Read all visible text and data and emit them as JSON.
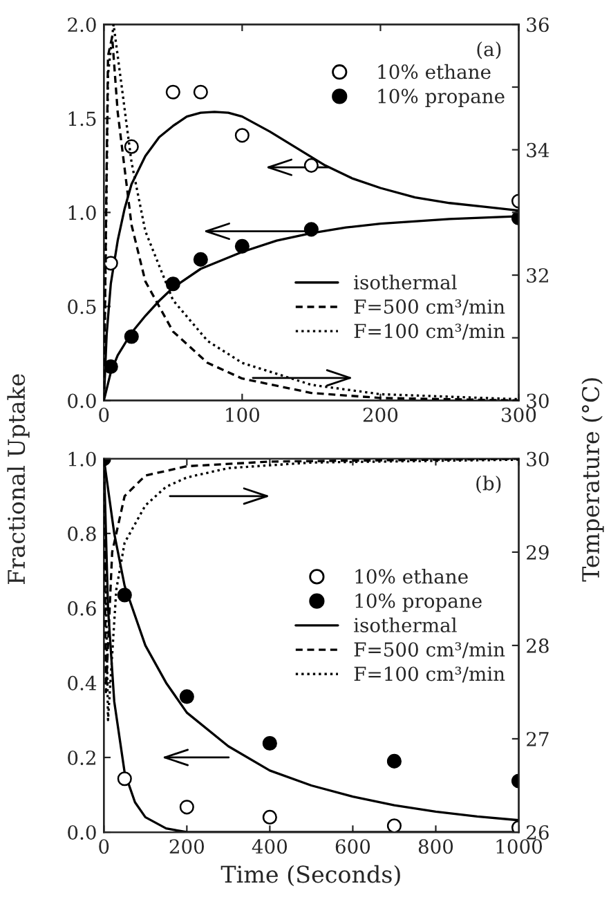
{
  "chart_data": [
    {
      "type": "line",
      "annotations": [
        "(a)"
      ],
      "ylabel": "Fractional Uptake",
      "y2label": "Temperature (°C)",
      "xlim": [
        0,
        300
      ],
      "xticks": [
        0,
        100,
        200,
        300
      ],
      "ylim": [
        0,
        2.0
      ],
      "yticks": [
        {
          "value": 0,
          "label": "0.0"
        },
        {
          "value": 0.5,
          "label": "0.5"
        },
        {
          "value": 1.0,
          "label": "1.0"
        },
        {
          "value": 1.5,
          "label": "1.5"
        },
        {
          "value": 2.0,
          "label": "2.0"
        }
      ],
      "y2lim": [
        30,
        36
      ],
      "y2ticks": [
        30,
        {
          "value": 31,
          "label": null
        },
        32,
        {
          "value": 33,
          "label": null
        },
        34,
        {
          "value": 35,
          "label": null
        },
        36
      ],
      "legend": "top right",
      "grid": false,
      "series": [
        {
          "name": "10% ethane",
          "type": "scatter",
          "marker": "circle",
          "color": "#ffffff",
          "x": [
            5,
            20,
            50,
            70,
            100,
            150,
            300
          ],
          "values": [
            0.73,
            1.35,
            1.64,
            1.64,
            1.41,
            1.25,
            1.06
          ]
        },
        {
          "name": "10% propane",
          "type": "scatter",
          "marker": "circle",
          "color": "#000000",
          "x": [
            5,
            20,
            50,
            70,
            100,
            150,
            300
          ],
          "values": [
            0.18,
            0.34,
            0.62,
            0.75,
            0.82,
            0.91,
            0.97
          ]
        },
        {
          "name": "isothermal",
          "line_style": "solid",
          "color": "#000000",
          "x": [
            0,
            2,
            5,
            10,
            15,
            20,
            30,
            40,
            50,
            60,
            70,
            80,
            90,
            100,
            120,
            140,
            160,
            180,
            200,
            225,
            250,
            275,
            300
          ],
          "values": [
            0,
            0.35,
            0.62,
            0.85,
            1.02,
            1.15,
            1.3,
            1.4,
            1.46,
            1.51,
            1.53,
            1.535,
            1.53,
            1.51,
            1.43,
            1.34,
            1.25,
            1.18,
            1.13,
            1.08,
            1.05,
            1.03,
            1.01
          ]
        },
        {
          "line_style": "solid",
          "color": "#000000",
          "x": [
            0,
            5,
            10,
            20,
            30,
            40,
            50,
            70,
            100,
            125,
            150,
            175,
            200,
            250,
            300
          ],
          "values": [
            0,
            0.15,
            0.24,
            0.36,
            0.45,
            0.53,
            0.6,
            0.7,
            0.79,
            0.85,
            0.89,
            0.92,
            0.94,
            0.965,
            0.98
          ]
        },
        {
          "name": "F=500 cm³/min",
          "axis": "y2",
          "line_style": "dashed",
          "color": "#000000",
          "x": [
            0,
            3,
            6,
            10,
            20,
            30,
            50,
            75,
            100,
            150,
            200,
            300
          ],
          "values": [
            30,
            35.5,
            35.8,
            34.6,
            32.8,
            31.9,
            31.1,
            30.6,
            30.35,
            30.12,
            30.04,
            30.0
          ]
        },
        {
          "name": "F=100 cm³/min",
          "axis": "y2",
          "line_style": "dotted",
          "color": "#000000",
          "x": [
            0,
            3,
            7,
            10,
            20,
            30,
            50,
            75,
            100,
            150,
            200,
            300
          ],
          "values": [
            30,
            35.2,
            36.0,
            35.5,
            33.8,
            32.7,
            31.6,
            30.95,
            30.6,
            30.25,
            30.1,
            30.02
          ]
        }
      ]
    },
    {
      "type": "line",
      "annotations": [
        "(b)"
      ],
      "xlabel": "Time (Seconds)",
      "xlim": [
        0,
        1000
      ],
      "xticks": [
        0,
        200,
        400,
        600,
        800,
        1000
      ],
      "ylim": [
        0,
        1.0
      ],
      "yticks": [
        {
          "value": 0,
          "label": "0.0"
        },
        {
          "value": 0.2,
          "label": "0.2"
        },
        {
          "value": 0.4,
          "label": "0.4"
        },
        {
          "value": 0.6,
          "label": "0.6"
        },
        {
          "value": 0.8,
          "label": "0.8"
        },
        {
          "value": 1.0,
          "label": "1.0"
        }
      ],
      "y2lim": [
        26,
        30
      ],
      "y2ticks": [
        26,
        27,
        28,
        29,
        30
      ],
      "legend": "right",
      "grid": false,
      "series": [
        {
          "name": "10% ethane",
          "type": "scatter",
          "marker": "circle",
          "color": "#ffffff",
          "x": [
            50,
            200,
            400,
            700,
            1000
          ],
          "values": [
            0.143,
            0.067,
            0.04,
            0.017,
            0.012
          ]
        },
        {
          "name": "10% propane",
          "type": "scatter",
          "marker": "circle",
          "color": "#000000",
          "x": [
            0,
            50,
            200,
            400,
            700,
            1000
          ],
          "values": [
            1.0,
            0.635,
            0.363,
            0.238,
            0.19,
            0.137
          ]
        },
        {
          "name": "isothermal",
          "line_style": "solid",
          "color": "#000000",
          "x": [
            0,
            10,
            25,
            50,
            75,
            100,
            150,
            200,
            1000
          ],
          "values": [
            1.0,
            0.6,
            0.35,
            0.16,
            0.08,
            0.04,
            0.01,
            0.0,
            0.0
          ]
        },
        {
          "line_style": "solid",
          "color": "#000000",
          "x": [
            0,
            25,
            50,
            100,
            150,
            200,
            300,
            400,
            500,
            600,
            700,
            800,
            900,
            1000
          ],
          "values": [
            1.0,
            0.8,
            0.66,
            0.5,
            0.4,
            0.32,
            0.23,
            0.165,
            0.125,
            0.095,
            0.072,
            0.055,
            0.042,
            0.032
          ]
        },
        {
          "name": "F=500 cm³/min",
          "axis": "y2",
          "line_style": "dashed",
          "color": "#000000",
          "x": [
            0,
            5,
            20,
            50,
            100,
            200,
            400,
            1000
          ],
          "values": [
            30,
            27.5,
            29.0,
            29.6,
            29.82,
            29.92,
            29.97,
            30
          ]
        },
        {
          "name": "F=100 cm³/min",
          "axis": "y2",
          "line_style": "dotted",
          "color": "#000000",
          "x": [
            0,
            10,
            30,
            50,
            100,
            150,
            200,
            300,
            500,
            1000
          ],
          "values": [
            30,
            27.2,
            28.6,
            29.1,
            29.5,
            29.7,
            29.8,
            29.9,
            29.96,
            29.99
          ]
        }
      ]
    }
  ]
}
